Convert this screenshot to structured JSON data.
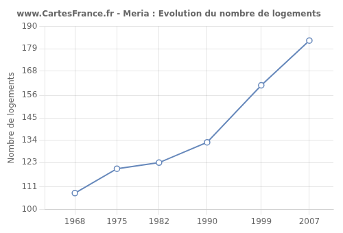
{
  "chart_data": {
    "type": "line",
    "title": "www.CartesFrance.fr - Meria : Evolution du nombre de logements",
    "ylabel": "Nombre de logements",
    "x": [
      1968,
      1975,
      1982,
      1990,
      1999,
      2007
    ],
    "values": [
      108,
      120,
      123,
      133,
      161,
      183
    ],
    "color": "#6688bb",
    "marker": "circle",
    "xlim": [
      1963,
      2011
    ],
    "xticks": [
      1968,
      1975,
      1982,
      1990,
      1999,
      2007
    ],
    "ylim": [
      100,
      190
    ],
    "yticks": [
      100,
      111,
      123,
      134,
      145,
      156,
      168,
      179,
      190
    ],
    "grid": true
  }
}
